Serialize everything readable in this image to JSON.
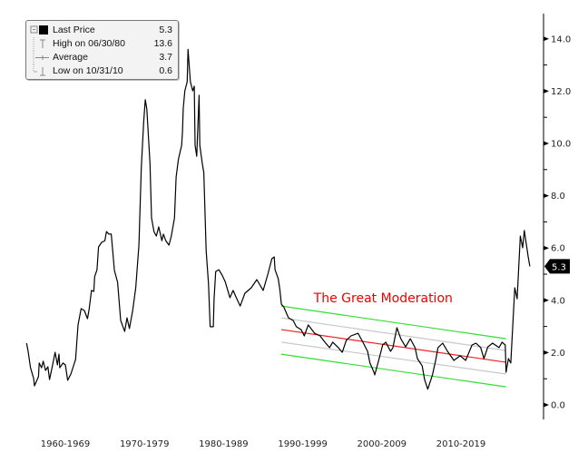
{
  "legend": {
    "items": [
      {
        "label": "Last Price",
        "value": "5.3",
        "icon": "black-square-icon"
      },
      {
        "label": "High on 06/30/80",
        "value": "13.6",
        "icon": "high-marker-icon"
      },
      {
        "label": "Average",
        "value": "3.7",
        "icon": "average-marker-icon"
      },
      {
        "label": "Low on 10/31/10",
        "value": "0.6",
        "icon": "low-marker-icon"
      }
    ]
  },
  "last_price_badge": "5.3",
  "chart_data": {
    "type": "line",
    "title": "",
    "xlabel": "",
    "ylabel": "",
    "ylim": [
      0,
      14
    ],
    "y_axis_position": "right",
    "y_ticks": [
      "0.0",
      "2.0",
      "4.0",
      "6.0",
      "8.0",
      "10.0",
      "12.0",
      "14.0"
    ],
    "x_ticks": [
      {
        "label": "1960-1969",
        "center": 1965
      },
      {
        "label": "1970-1979",
        "center": 1975
      },
      {
        "label": "1980-1989",
        "center": 1985
      },
      {
        "label": "1990-1999",
        "center": 1995
      },
      {
        "label": "2000-2009",
        "center": 2005
      },
      {
        "label": "2010-2019",
        "center": 2015
      }
    ],
    "grid": false,
    "legend_position": "top-left",
    "series": [
      {
        "color": "#000000",
        "points": [
          [
            1960.1,
            2.36
          ],
          [
            1960.3,
            2.05
          ],
          [
            1960.6,
            1.42
          ],
          [
            1961.0,
            1.01
          ],
          [
            1961.1,
            0.73
          ],
          [
            1961.6,
            1.08
          ],
          [
            1961.7,
            1.6
          ],
          [
            1962.0,
            1.42
          ],
          [
            1962.2,
            1.67
          ],
          [
            1962.5,
            1.32
          ],
          [
            1962.8,
            1.46
          ],
          [
            1963.0,
            0.97
          ],
          [
            1963.4,
            1.53
          ],
          [
            1963.7,
            2.01
          ],
          [
            1964.0,
            1.53
          ],
          [
            1964.2,
            1.94
          ],
          [
            1964.3,
            1.42
          ],
          [
            1964.7,
            1.6
          ],
          [
            1965.0,
            1.53
          ],
          [
            1965.3,
            0.94
          ],
          [
            1965.7,
            1.18
          ],
          [
            1966.3,
            1.74
          ],
          [
            1966.6,
            3.06
          ],
          [
            1967.0,
            3.68
          ],
          [
            1967.4,
            3.61
          ],
          [
            1967.8,
            3.3
          ],
          [
            1968.0,
            3.65
          ],
          [
            1968.3,
            4.38
          ],
          [
            1968.6,
            4.34
          ],
          [
            1968.7,
            4.9
          ],
          [
            1969.0,
            5.17
          ],
          [
            1969.2,
            6.04
          ],
          [
            1969.6,
            6.22
          ],
          [
            1970.0,
            6.28
          ],
          [
            1970.2,
            6.63
          ],
          [
            1970.5,
            6.53
          ],
          [
            1970.8,
            6.53
          ],
          [
            1971.2,
            5.14
          ],
          [
            1971.6,
            4.69
          ],
          [
            1972.0,
            3.23
          ],
          [
            1972.5,
            2.81
          ],
          [
            1972.8,
            3.33
          ],
          [
            1973.1,
            2.92
          ],
          [
            1973.5,
            3.58
          ],
          [
            1973.9,
            4.48
          ],
          [
            1974.3,
            6.11
          ],
          [
            1974.6,
            9.06
          ],
          [
            1974.9,
            10.8
          ],
          [
            1975.1,
            11.67
          ],
          [
            1975.3,
            11.32
          ],
          [
            1975.7,
            9.24
          ],
          [
            1975.9,
            7.15
          ],
          [
            1976.2,
            6.63
          ],
          [
            1976.5,
            6.46
          ],
          [
            1976.8,
            6.81
          ],
          [
            1977.2,
            6.28
          ],
          [
            1977.4,
            6.53
          ],
          [
            1977.7,
            6.28
          ],
          [
            1978.1,
            6.11
          ],
          [
            1978.4,
            6.46
          ],
          [
            1978.8,
            7.15
          ],
          [
            1979.0,
            8.72
          ],
          [
            1979.3,
            9.41
          ],
          [
            1979.7,
            9.93
          ],
          [
            1979.8,
            10.45
          ],
          [
            1979.9,
            11.32
          ],
          [
            1980.1,
            12.01
          ],
          [
            1980.4,
            12.36
          ],
          [
            1980.5,
            13.6
          ],
          [
            1980.8,
            12.36
          ],
          [
            1981.1,
            12.01
          ],
          [
            1981.3,
            12.19
          ],
          [
            1981.4,
            9.93
          ],
          [
            1981.6,
            9.51
          ],
          [
            1981.9,
            11.84
          ],
          [
            1982.0,
            9.93
          ],
          [
            1982.3,
            9.24
          ],
          [
            1982.5,
            8.89
          ],
          [
            1982.8,
            5.9
          ],
          [
            1983.1,
            4.62
          ],
          [
            1983.3,
            2.99
          ],
          [
            1983.7,
            2.99
          ],
          [
            1983.8,
            4.03
          ],
          [
            1984.0,
            5.1
          ],
          [
            1984.4,
            5.17
          ],
          [
            1984.8,
            4.97
          ],
          [
            1985.2,
            4.72
          ],
          [
            1985.8,
            4.1
          ],
          [
            1986.2,
            4.38
          ],
          [
            1986.6,
            4.1
          ],
          [
            1987.1,
            3.78
          ],
          [
            1987.7,
            4.27
          ],
          [
            1988.5,
            4.48
          ],
          [
            1989.2,
            4.79
          ],
          [
            1990.0,
            4.38
          ],
          [
            1990.6,
            5.0
          ],
          [
            1991.1,
            5.59
          ],
          [
            1991.4,
            5.66
          ],
          [
            1991.5,
            5.17
          ],
          [
            1991.9,
            4.83
          ],
          [
            1992.1,
            4.44
          ],
          [
            1992.3,
            3.85
          ],
          [
            1992.6,
            3.75
          ],
          [
            1993.2,
            3.33
          ],
          [
            1993.8,
            3.23
          ],
          [
            1994.2,
            2.99
          ],
          [
            1994.8,
            2.88
          ],
          [
            1995.2,
            2.64
          ],
          [
            1995.7,
            3.06
          ],
          [
            1996.5,
            2.74
          ],
          [
            1997.2,
            2.64
          ],
          [
            1997.8,
            2.4
          ],
          [
            1998.4,
            2.19
          ],
          [
            1998.8,
            2.4
          ],
          [
            1999.5,
            2.19
          ],
          [
            2000.0,
            2.01
          ],
          [
            2000.5,
            2.47
          ],
          [
            2001.1,
            2.64
          ],
          [
            2002.0,
            2.74
          ],
          [
            2002.6,
            2.4
          ],
          [
            2003.2,
            2.05
          ],
          [
            2003.5,
            1.6
          ],
          [
            2004.0,
            1.25
          ],
          [
            2004.1,
            1.15
          ],
          [
            2004.6,
            1.7
          ],
          [
            2005.1,
            2.29
          ],
          [
            2005.5,
            2.4
          ],
          [
            2006.1,
            2.05
          ],
          [
            2006.4,
            2.19
          ],
          [
            2006.9,
            2.95
          ],
          [
            2007.4,
            2.53
          ],
          [
            2008.0,
            2.22
          ],
          [
            2008.6,
            2.53
          ],
          [
            2009.2,
            2.19
          ],
          [
            2009.5,
            1.77
          ],
          [
            2010.1,
            1.49
          ],
          [
            2010.4,
            0.97
          ],
          [
            2010.8,
            0.6
          ],
          [
            2011.4,
            1.15
          ],
          [
            2011.8,
            1.7
          ],
          [
            2012.1,
            2.19
          ],
          [
            2012.7,
            2.36
          ],
          [
            2013.3,
            2.05
          ],
          [
            2014.1,
            1.7
          ],
          [
            2014.9,
            1.88
          ],
          [
            2015.6,
            1.7
          ],
          [
            2016.4,
            2.29
          ],
          [
            2016.9,
            2.36
          ],
          [
            2017.5,
            2.19
          ],
          [
            2017.9,
            1.77
          ],
          [
            2018.4,
            2.22
          ],
          [
            2019.0,
            2.36
          ],
          [
            2019.8,
            2.19
          ],
          [
            2020.2,
            2.4
          ],
          [
            2020.6,
            2.29
          ],
          [
            2020.7,
            1.25
          ],
          [
            2021.0,
            1.77
          ],
          [
            2021.3,
            1.6
          ],
          [
            2021.8,
            4.48
          ],
          [
            2022.1,
            4.06
          ],
          [
            2022.5,
            6.46
          ],
          [
            2022.8,
            6.01
          ],
          [
            2023.0,
            6.67
          ],
          [
            2023.5,
            5.66
          ],
          [
            2023.7,
            5.3
          ]
        ]
      }
    ],
    "trend_channel": {
      "x": [
        1992.3,
        2020.7
      ],
      "lines": [
        {
          "role": "upper-outer",
          "color": "#33dd33",
          "y": [
            3.78,
            2.53
          ]
        },
        {
          "role": "upper-inner",
          "color": "#c8c8c8",
          "y": [
            3.33,
            2.08
          ]
        },
        {
          "role": "center",
          "color": "#ee2222",
          "y": [
            2.88,
            1.63
          ]
        },
        {
          "role": "lower-inner",
          "color": "#c8c8c8",
          "y": [
            2.4,
            1.18
          ]
        },
        {
          "role": "lower-outer",
          "color": "#33dd33",
          "y": [
            1.94,
            0.69
          ]
        }
      ]
    },
    "annotations": [
      {
        "text": "The Great Moderation",
        "color": "#ee0000",
        "x": 1996.5,
        "y": 4.1
      }
    ]
  }
}
